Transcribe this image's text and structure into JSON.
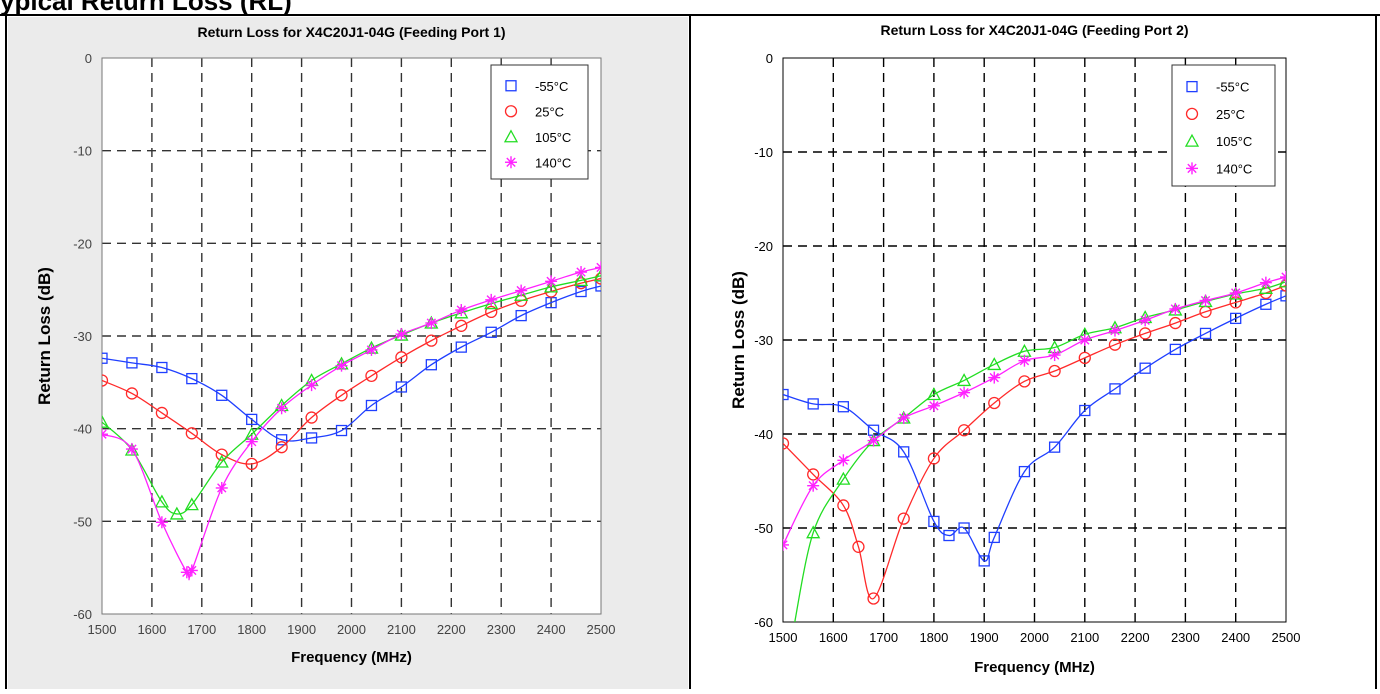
{
  "heading_fragment": "ypical Return Loss (RL)",
  "colors": {
    "m55": "#1f3fff",
    "p25": "#ff2a2a",
    "p105": "#22dd22",
    "p140": "#ff22ff"
  },
  "chart_data": [
    {
      "type": "line",
      "title": "Return Loss for X4C20J1-04G (Feeding Port 1)",
      "xlabel": "Frequency (MHz)",
      "ylabel": "Return Loss (dB)",
      "xlim": [
        1500,
        2500
      ],
      "ylim": [
        -60,
        0
      ],
      "xticks": [
        "1500",
        "1600",
        "1700",
        "1800",
        "1900",
        "2000",
        "2100",
        "2200",
        "2300",
        "2400",
        "2500"
      ],
      "yticks": [
        "0",
        "-10",
        "-20",
        "-30",
        "-40",
        "-50",
        "-60"
      ],
      "grid": "dashed",
      "legend": "top-right",
      "series": [
        {
          "name": "-55°C",
          "color": "#1f3fff",
          "marker": "square",
          "x": [
            1500,
            1560,
            1620,
            1680,
            1740,
            1800,
            1860,
            1920,
            1980,
            2040,
            2100,
            2160,
            2220,
            2280,
            2340,
            2400,
            2460,
            2500
          ],
          "y": [
            -32.4,
            -32.9,
            -33.4,
            -34.6,
            -36.4,
            -39.0,
            -41.2,
            -41.0,
            -40.2,
            -37.5,
            -35.5,
            -33.1,
            -31.2,
            -29.6,
            -27.8,
            -26.4,
            -25.2,
            -24.6
          ]
        },
        {
          "name": "25°C",
          "color": "#ff2a2a",
          "marker": "circle",
          "x": [
            1500,
            1560,
            1620,
            1680,
            1740,
            1800,
            1860,
            1920,
            1980,
            2040,
            2100,
            2160,
            2220,
            2280,
            2340,
            2400,
            2460,
            2500
          ],
          "y": [
            -34.8,
            -36.2,
            -38.3,
            -40.5,
            -42.8,
            -43.8,
            -42.0,
            -38.8,
            -36.4,
            -34.3,
            -32.3,
            -30.5,
            -28.9,
            -27.4,
            -26.2,
            -25.2,
            -24.3,
            -23.8
          ]
        },
        {
          "name": "105°C",
          "color": "#22dd22",
          "marker": "triangle",
          "x": [
            1500,
            1560,
            1620,
            1650,
            1680,
            1740,
            1800,
            1860,
            1920,
            1980,
            2040,
            2100,
            2160,
            2220,
            2280,
            2340,
            2400,
            2460,
            2500
          ],
          "y": [
            -39.3,
            -42.3,
            -47.9,
            -49.2,
            -48.2,
            -43.6,
            -40.6,
            -37.5,
            -34.8,
            -33.0,
            -31.3,
            -29.9,
            -28.6,
            -27.5,
            -26.5,
            -25.6,
            -24.7,
            -24.0,
            -23.5
          ]
        },
        {
          "name": "140°C",
          "color": "#ff22ff",
          "marker": "asterisk",
          "x": [
            1500,
            1560,
            1620,
            1670,
            1680,
            1740,
            1800,
            1860,
            1920,
            1980,
            2040,
            2100,
            2160,
            2220,
            2280,
            2340,
            2400,
            2460,
            2500
          ],
          "y": [
            -40.6,
            -42.2,
            -50.1,
            -55.5,
            -55.3,
            -46.4,
            -41.4,
            -37.8,
            -35.3,
            -33.2,
            -31.5,
            -29.8,
            -28.6,
            -27.2,
            -26.1,
            -25.1,
            -24.1,
            -23.1,
            -22.6
          ]
        }
      ]
    },
    {
      "type": "line",
      "title": "Return Loss for X4C20J1-04G (Feeding Port 2)",
      "xlabel": "Frequency (MHz)",
      "ylabel": "Return Loss (dB)",
      "xlim": [
        1500,
        2500
      ],
      "ylim": [
        -60,
        0
      ],
      "xticks": [
        "1500",
        "1600",
        "1700",
        "1800",
        "1900",
        "2000",
        "2100",
        "2200",
        "2300",
        "2400",
        "2500"
      ],
      "yticks": [
        "0",
        "-10",
        "-20",
        "-30",
        "-40",
        "-50",
        "-60"
      ],
      "grid": "dashed",
      "legend": "top-right",
      "series": [
        {
          "name": "-55°C",
          "color": "#1f3fff",
          "marker": "square",
          "x": [
            1500,
            1560,
            1620,
            1680,
            1740,
            1800,
            1830,
            1860,
            1900,
            1920,
            1980,
            2040,
            2100,
            2160,
            2220,
            2280,
            2340,
            2400,
            2460,
            2500
          ],
          "y": [
            -35.8,
            -36.8,
            -37.1,
            -39.6,
            -41.9,
            -49.3,
            -50.8,
            -50.0,
            -53.5,
            -51.0,
            -44.0,
            -41.4,
            -37.5,
            -35.2,
            -33.0,
            -31.0,
            -29.3,
            -27.7,
            -26.2,
            -25.3
          ]
        },
        {
          "name": "25°C",
          "color": "#ff2a2a",
          "marker": "circle",
          "x": [
            1500,
            1560,
            1620,
            1650,
            1680,
            1740,
            1800,
            1860,
            1920,
            1980,
            2040,
            2100,
            2160,
            2220,
            2280,
            2340,
            2400,
            2460,
            2500
          ],
          "y": [
            -41.0,
            -44.3,
            -47.6,
            -52.0,
            -57.5,
            -49.0,
            -42.6,
            -39.6,
            -36.7,
            -34.4,
            -33.3,
            -31.9,
            -30.5,
            -29.3,
            -28.2,
            -27.0,
            -26.0,
            -25.0,
            -24.2
          ]
        },
        {
          "name": "105°C",
          "color": "#22dd22",
          "marker": "triangle",
          "x": [
            1520,
            1560,
            1620,
            1680,
            1740,
            1800,
            1860,
            1920,
            1980,
            2040,
            2100,
            2160,
            2220,
            2280,
            2340,
            2400,
            2460,
            2500
          ],
          "y": [
            -61.0,
            -50.5,
            -44.8,
            -40.7,
            -38.3,
            -35.8,
            -34.3,
            -32.6,
            -31.2,
            -30.8,
            -29.4,
            -28.7,
            -27.6,
            -26.8,
            -25.9,
            -25.1,
            -24.5,
            -23.8
          ]
        },
        {
          "name": "140°C",
          "color": "#ff22ff",
          "marker": "asterisk",
          "x": [
            1500,
            1560,
            1620,
            1680,
            1740,
            1800,
            1860,
            1920,
            1980,
            2040,
            2100,
            2160,
            2220,
            2280,
            2340,
            2400,
            2460,
            2500
          ],
          "y": [
            -51.8,
            -45.5,
            -42.8,
            -40.7,
            -38.3,
            -37.0,
            -35.6,
            -34.0,
            -32.2,
            -31.6,
            -30.0,
            -29.0,
            -27.9,
            -26.7,
            -25.8,
            -25.0,
            -23.9,
            -23.3
          ]
        }
      ]
    }
  ]
}
